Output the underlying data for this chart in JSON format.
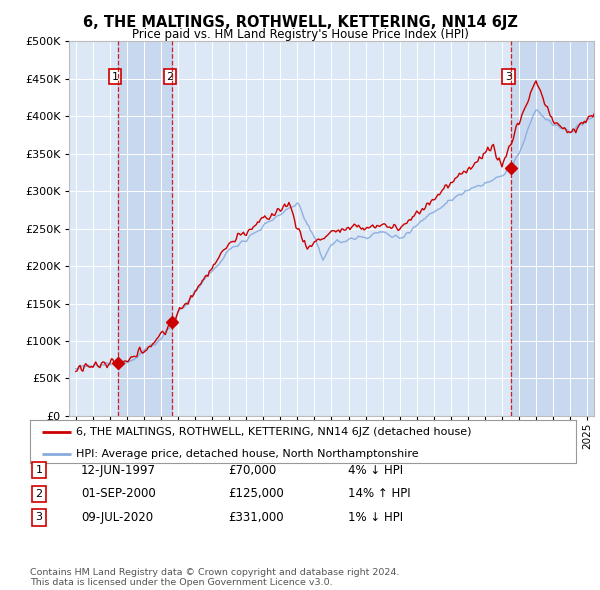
{
  "title": "6, THE MALTINGS, ROTHWELL, KETTERING, NN14 6JZ",
  "subtitle": "Price paid vs. HM Land Registry's House Price Index (HPI)",
  "legend_line1": "6, THE MALTINGS, ROTHWELL, KETTERING, NN14 6JZ (detached house)",
  "legend_line2": "HPI: Average price, detached house, North Northamptonshire",
  "transactions": [
    {
      "num": 1,
      "date": "12-JUN-1997",
      "price": 70000,
      "pct": "4%",
      "dir": "↓",
      "year": 1997.45
    },
    {
      "num": 2,
      "date": "01-SEP-2000",
      "price": 125000,
      "pct": "14%",
      "dir": "↑",
      "year": 2000.67
    },
    {
      "num": 3,
      "date": "09-JUL-2020",
      "price": 331000,
      "pct": "1%",
      "dir": "↓",
      "year": 2020.52
    }
  ],
  "footer": "Contains HM Land Registry data © Crown copyright and database right 2024.\nThis data is licensed under the Open Government Licence v3.0.",
  "plot_bg": "#dce8f5",
  "red_color": "#cc0000",
  "blue_color": "#88aadd",
  "shade_color": "#c8d8ee",
  "ylim": [
    0,
    500000
  ],
  "xlim_start": 1994.6,
  "xlim_end": 2025.4
}
